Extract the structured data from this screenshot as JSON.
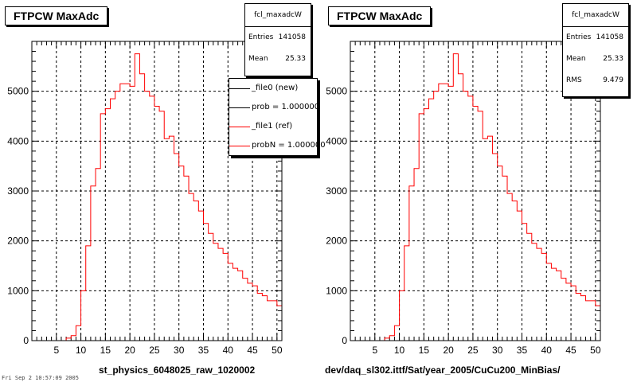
{
  "chart_data": [
    {
      "type": "histogram",
      "title": "FTPCW MaxAdc",
      "xlabel": "st_physics_6048025_raw_1020002",
      "ylabel": "",
      "xlim": [
        0,
        51
      ],
      "ylim": [
        0,
        6000
      ],
      "x_ticks": [
        5,
        10,
        15,
        20,
        25,
        30,
        35,
        40,
        45,
        50
      ],
      "y_ticks": [
        0,
        1000,
        2000,
        3000,
        4000,
        5000
      ],
      "grid": true,
      "bin_width": 1,
      "series": [
        {
          "name": "_file1 (ref)",
          "color": "#ff0000",
          "x": [
            0,
            1,
            2,
            3,
            4,
            5,
            6,
            7,
            8,
            9,
            10,
            11,
            12,
            13,
            14,
            15,
            16,
            17,
            18,
            19,
            20,
            21,
            22,
            23,
            24,
            25,
            26,
            27,
            28,
            29,
            30,
            31,
            32,
            33,
            34,
            35,
            36,
            37,
            38,
            39,
            40,
            41,
            42,
            43,
            44,
            45,
            46,
            47,
            48,
            49,
            50
          ],
          "values": [
            0,
            0,
            0,
            0,
            0,
            0,
            0,
            50,
            100,
            300,
            1000,
            1900,
            3100,
            3450,
            4550,
            4650,
            4850,
            5000,
            5150,
            5150,
            5100,
            5750,
            5350,
            5000,
            4900,
            4700,
            4600,
            4050,
            4100,
            3750,
            3500,
            3300,
            2950,
            2800,
            2600,
            2350,
            2150,
            1950,
            1850,
            1750,
            1550,
            1450,
            1400,
            1250,
            1150,
            1100,
            950,
            900,
            800,
            800,
            700
          ]
        }
      ],
      "stats": {
        "name": "fcl_maxadcW",
        "entries_label": "Entries",
        "entries": "141058",
        "mean_label": "Mean",
        "mean": "25.33"
      },
      "legend": {
        "position": "top-right",
        "entries": [
          {
            "label": "_file0 (new)",
            "color": "#000000"
          },
          {
            "label": "prob = 1.000000",
            "color": "#000000"
          },
          {
            "label": "_file1 (ref)",
            "color": "#ff0000"
          },
          {
            "label": "probN = 1.000000",
            "color": "#ff0000"
          }
        ]
      }
    },
    {
      "type": "histogram",
      "title": "FTPCW MaxAdc",
      "xlabel": "dev/daq_sl302.ittf/Sat/year_2005/CuCu200_MinBias/",
      "ylabel": "",
      "xlim": [
        0,
        51
      ],
      "ylim": [
        0,
        6000
      ],
      "x_ticks": [
        5,
        10,
        15,
        20,
        25,
        30,
        35,
        40,
        45,
        50
      ],
      "y_ticks": [
        0,
        1000,
        2000,
        3000,
        4000,
        5000
      ],
      "grid": true,
      "bin_width": 1,
      "series": [
        {
          "name": "",
          "color": "#ff0000",
          "x": [
            0,
            1,
            2,
            3,
            4,
            5,
            6,
            7,
            8,
            9,
            10,
            11,
            12,
            13,
            14,
            15,
            16,
            17,
            18,
            19,
            20,
            21,
            22,
            23,
            24,
            25,
            26,
            27,
            28,
            29,
            30,
            31,
            32,
            33,
            34,
            35,
            36,
            37,
            38,
            39,
            40,
            41,
            42,
            43,
            44,
            45,
            46,
            47,
            48,
            49,
            50
          ],
          "values": [
            0,
            0,
            0,
            0,
            0,
            0,
            0,
            50,
            100,
            300,
            1000,
            1900,
            3100,
            3450,
            4550,
            4650,
            4850,
            5000,
            5150,
            5150,
            5100,
            5750,
            5350,
            5000,
            4900,
            4700,
            4600,
            4050,
            4100,
            3750,
            3500,
            3300,
            2950,
            2800,
            2600,
            2350,
            2150,
            1950,
            1850,
            1750,
            1550,
            1450,
            1400,
            1250,
            1150,
            1100,
            950,
            900,
            800,
            800,
            700
          ]
        }
      ],
      "stats": {
        "name": "fcl_maxadcW",
        "entries_label": "Entries",
        "entries": "141058",
        "mean_label": "Mean",
        "mean": "25.33",
        "rms_label": "RMS",
        "rms": "9.479"
      }
    }
  ],
  "footer": "Fri Sep 2 10:57:09 2005"
}
